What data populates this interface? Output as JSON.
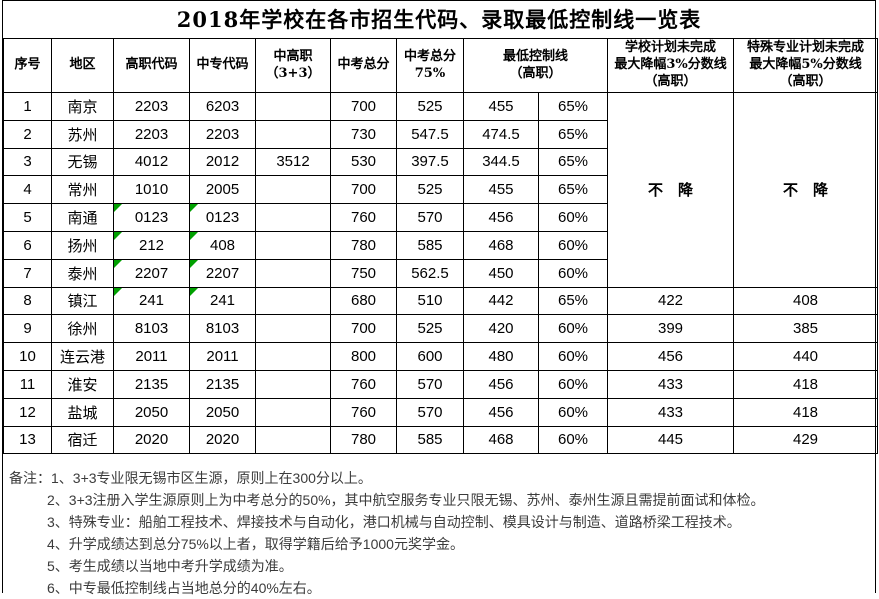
{
  "title": "2018年学校在各市招生代码、录取最低控制线一览表",
  "table": {
    "headers": [
      "序号",
      "地区",
      "高职代码",
      "中专代码",
      "中高职\n（3+3）",
      "中考总分",
      "中考总分\n75%",
      "最低控制线\n（高职）",
      "学校计划未完成\n最大降幅3%分数线\n（高职）",
      "特殊专业计划未完成\n最大降幅5%分数线\n（高职）"
    ],
    "no_drop_label": "不　降",
    "no_drop_rowspan": 7,
    "error_flag_color": "#00a000",
    "rows": [
      {
        "no": "1",
        "region": "南京",
        "gz": "2203",
        "gz_flag": false,
        "zz": "6203",
        "zz_flag": false,
        "zgz": "",
        "total": "700",
        "p75": "525",
        "min": "455",
        "pct": "65%",
        "school": null,
        "special": null
      },
      {
        "no": "2",
        "region": "苏州",
        "gz": "2203",
        "gz_flag": false,
        "zz": "2203",
        "zz_flag": false,
        "zgz": "",
        "total": "730",
        "p75": "547.5",
        "min": "474.5",
        "pct": "65%",
        "school": null,
        "special": null
      },
      {
        "no": "3",
        "region": "无锡",
        "gz": "4012",
        "gz_flag": false,
        "zz": "2012",
        "zz_flag": false,
        "zgz": "3512",
        "total": "530",
        "p75": "397.5",
        "min": "344.5",
        "pct": "65%",
        "school": null,
        "special": null
      },
      {
        "no": "4",
        "region": "常州",
        "gz": "1010",
        "gz_flag": false,
        "zz": "2005",
        "zz_flag": false,
        "zgz": "",
        "total": "700",
        "p75": "525",
        "min": "455",
        "pct": "65%",
        "school": null,
        "special": null
      },
      {
        "no": "5",
        "region": "南通",
        "gz": "0123",
        "gz_flag": true,
        "zz": "0123",
        "zz_flag": true,
        "zgz": "",
        "total": "760",
        "p75": "570",
        "min": "456",
        "pct": "60%",
        "school": null,
        "special": null
      },
      {
        "no": "6",
        "region": "扬州",
        "gz": "212",
        "gz_flag": true,
        "zz": "408",
        "zz_flag": true,
        "zgz": "",
        "total": "780",
        "p75": "585",
        "min": "468",
        "pct": "60%",
        "school": null,
        "special": null
      },
      {
        "no": "7",
        "region": "泰州",
        "gz": "2207",
        "gz_flag": true,
        "zz": "2207",
        "zz_flag": true,
        "zgz": "",
        "total": "750",
        "p75": "562.5",
        "min": "450",
        "pct": "60%",
        "school": null,
        "special": null
      },
      {
        "no": "8",
        "region": "镇江",
        "gz": "241",
        "gz_flag": true,
        "zz": "241",
        "zz_flag": true,
        "zgz": "",
        "total": "680",
        "p75": "510",
        "min": "442",
        "pct": "65%",
        "school": "422",
        "special": "408"
      },
      {
        "no": "9",
        "region": "徐州",
        "gz": "8103",
        "gz_flag": false,
        "zz": "8103",
        "zz_flag": false,
        "zgz": "",
        "total": "700",
        "p75": "525",
        "min": "420",
        "pct": "60%",
        "school": "399",
        "special": "385"
      },
      {
        "no": "10",
        "region": "连云港",
        "gz": "2011",
        "gz_flag": false,
        "zz": "2011",
        "zz_flag": false,
        "zgz": "",
        "total": "800",
        "p75": "600",
        "min": "480",
        "pct": "60%",
        "school": "456",
        "special": "440"
      },
      {
        "no": "11",
        "region": "淮安",
        "gz": "2135",
        "gz_flag": false,
        "zz": "2135",
        "zz_flag": false,
        "zgz": "",
        "total": "760",
        "p75": "570",
        "min": "456",
        "pct": "60%",
        "school": "433",
        "special": "418"
      },
      {
        "no": "12",
        "region": "盐城",
        "gz": "2050",
        "gz_flag": false,
        "zz": "2050",
        "zz_flag": false,
        "zgz": "",
        "total": "760",
        "p75": "570",
        "min": "456",
        "pct": "60%",
        "school": "433",
        "special": "418"
      },
      {
        "no": "13",
        "region": "宿迁",
        "gz": "2020",
        "gz_flag": false,
        "zz": "2020",
        "zz_flag": false,
        "zgz": "",
        "total": "780",
        "p75": "585",
        "min": "468",
        "pct": "60%",
        "school": "445",
        "special": "429"
      }
    ]
  },
  "notes": {
    "prefix": "备注：",
    "items": [
      "1、3+3专业限无锡市区生源，原则上在300分以上。",
      "2、3+3注册入学生源原则上为中考总分的50%，其中航空服务专业只限无锡、苏州、泰州生源且需提前面试和体检。",
      "3、特殊专业：船舶工程技术、焊接技术与自动化，港口机械与自动控制、模具设计与制造、道路桥梁工程技术。",
      "4、升学成绩达到总分75%以上者，取得学籍后给予1000元奖学金。",
      "5、考生成绩以当地中考升学成绩为准。",
      "6、中专最低控制线占当地总分的40%左右。"
    ]
  }
}
